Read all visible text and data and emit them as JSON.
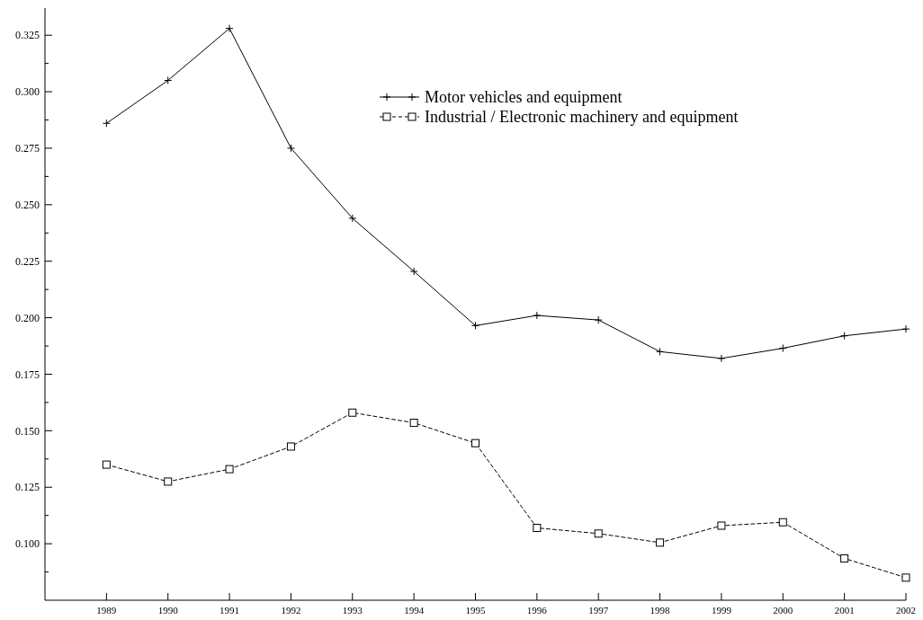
{
  "chart_data": {
    "type": "line",
    "x": [
      1989,
      1990,
      1991,
      1992,
      1993,
      1994,
      1995,
      1996,
      1997,
      1998,
      1999,
      2000,
      2001,
      2002
    ],
    "xlim": [
      1988,
      2002
    ],
    "xticks": [
      1989,
      1990,
      1991,
      1992,
      1993,
      1994,
      1995,
      1996,
      1997,
      1998,
      1999,
      2000,
      2001,
      2002
    ],
    "ylim": [
      0.075,
      0.337
    ],
    "yticks": [
      {
        "value": 0.0875,
        "label": null
      },
      {
        "value": 0.1,
        "label": "0.100"
      },
      {
        "value": 0.1125,
        "label": null
      },
      {
        "value": 0.125,
        "label": "0.125"
      },
      {
        "value": 0.1375,
        "label": null
      },
      {
        "value": 0.15,
        "label": "0.150"
      },
      {
        "value": 0.1625,
        "label": null
      },
      {
        "value": 0.175,
        "label": "0.175"
      },
      {
        "value": 0.1875,
        "label": null
      },
      {
        "value": 0.2,
        "label": "0.200"
      },
      {
        "value": 0.2125,
        "label": null
      },
      {
        "value": 0.225,
        "label": "0.225"
      },
      {
        "value": 0.2375,
        "label": null
      },
      {
        "value": 0.25,
        "label": "0.250"
      },
      {
        "value": 0.2625,
        "label": null
      },
      {
        "value": 0.275,
        "label": "0.275"
      },
      {
        "value": 0.2875,
        "label": null
      },
      {
        "value": 0.3,
        "label": "0.300"
      },
      {
        "value": 0.3125,
        "label": null
      },
      {
        "value": 0.325,
        "label": "0.325"
      }
    ],
    "legend": "top right",
    "grid": false,
    "series": [
      {
        "name": "Motor vehicles and equipment",
        "color": "#000000",
        "marker": "cross",
        "line_style": "solid",
        "values": [
          0.286,
          0.305,
          0.328,
          0.275,
          0.244,
          0.2205,
          0.1965,
          0.201,
          0.199,
          0.185,
          0.182,
          0.1865,
          0.192,
          0.195
        ]
      },
      {
        "name": "Industrial / Electronic machinery and equipment",
        "color": "#000000",
        "marker": "square",
        "line_style": "dashed",
        "values": [
          0.135,
          0.1275,
          0.133,
          0.143,
          0.158,
          0.1535,
          0.1445,
          0.107,
          0.1045,
          0.1005,
          0.108,
          0.1095,
          0.0935,
          0.085
        ]
      }
    ]
  }
}
